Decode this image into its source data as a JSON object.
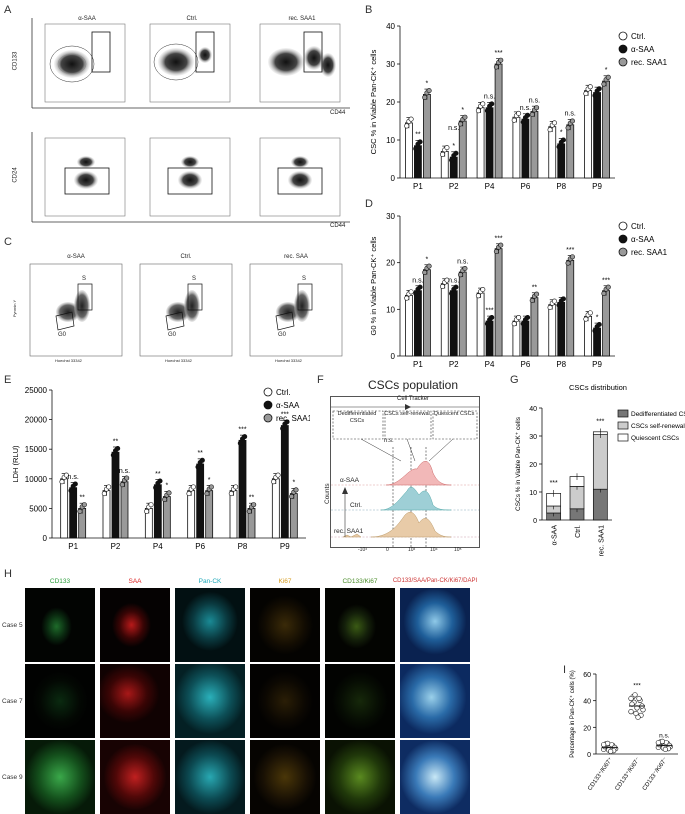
{
  "panels": {
    "A": {
      "label": "A",
      "top_titles": [
        "α-SAA",
        "Ctrl.",
        "rec. SAA1"
      ],
      "top_ylabel": "CD133",
      "top_xlabel": "CD44",
      "bottom_ylabel": "CD24",
      "bottom_xlabel": "CD44"
    },
    "C": {
      "label": "C",
      "titles": [
        "α-SAA",
        "Ctrl.",
        "rec. SAA"
      ],
      "gate_s": "S",
      "gate_g0": "G0",
      "ylabel": "Pyronin Y",
      "xlabel": "Hoechst 33342"
    },
    "F": {
      "label": "F",
      "title": "CSCs population",
      "tracker": "Cell Tracker",
      "gates": [
        "Dedifferentiated CSCs",
        "CSCs self-renewal",
        "Quiescent CSCs"
      ],
      "rows": [
        "α-SAA",
        "Ctrl.",
        "rec. SAA1"
      ],
      "ylabel": "Counts",
      "ns": "n.s.",
      "xticks": [
        "-10³",
        "0",
        "10³",
        "10⁴",
        "10⁵"
      ]
    },
    "H": {
      "label": "H",
      "columns": [
        "CD133",
        "SAA",
        "Pan-CK",
        "Ki67",
        "CD133/Ki67",
        "CD133/SAA/Pan-CK/Ki67/DAPI"
      ],
      "cases": [
        "Case 5",
        "Case 7",
        "Case 9"
      ]
    }
  },
  "chart_data": [
    {
      "id": "B",
      "label": "B",
      "type": "bar",
      "categories": [
        "P1",
        "P2",
        "P4",
        "P6",
        "P8",
        "P9"
      ],
      "series": [
        {
          "name": "Ctrl.",
          "color": "#ffffff",
          "values": [
            14.5,
            7,
            18.5,
            16,
            13.5,
            23
          ]
        },
        {
          "name": "α-SAA",
          "color": "#111111",
          "values": [
            8.5,
            5.5,
            18.5,
            15.5,
            9,
            22.5
          ]
        },
        {
          "name": "rec. SAA1",
          "color": "#999999",
          "values": [
            22,
            15,
            30,
            17.5,
            14,
            25.5
          ]
        }
      ],
      "ylabel": "CSC % in Viable Pan-CK⁺ cells",
      "ylim": [
        0,
        40
      ],
      "yticks": [
        0,
        10,
        20,
        30,
        40
      ],
      "annotations": [
        [
          "**",
          "*"
        ],
        [
          "*",
          "*"
        ],
        [
          "n.s.",
          "***"
        ],
        [
          "n.s.",
          "n.s."
        ],
        [
          "*",
          "n.s."
        ],
        [
          "",
          "*"
        ]
      ],
      "extra_ns": [
        [
          "n.s.",
          1,
          2
        ]
      ]
    },
    {
      "id": "D",
      "label": "D",
      "type": "bar",
      "categories": [
        "P1",
        "P2",
        "P4",
        "P6",
        "P8",
        "P9"
      ],
      "series": [
        {
          "name": "Ctrl.",
          "color": "#ffffff",
          "values": [
            13,
            15.5,
            13.5,
            7.5,
            11,
            8.5
          ]
        },
        {
          "name": "α-SAA",
          "color": "#111111",
          "values": [
            14,
            14,
            7.5,
            7.5,
            11.5,
            6
          ]
        },
        {
          "name": "rec. SAA1",
          "color": "#999999",
          "values": [
            18.5,
            18,
            23,
            12.5,
            20.5,
            14
          ]
        }
      ],
      "ylabel": "G0 % in Viable Pan-CK⁺ cells",
      "ylim": [
        0,
        30
      ],
      "yticks": [
        0,
        10,
        20,
        30
      ],
      "annotations": [
        [
          "n.s.",
          "*"
        ],
        [
          "n.s.",
          "n.s."
        ],
        [
          "***",
          "***"
        ],
        [
          "",
          "**"
        ],
        [
          "",
          "***"
        ],
        [
          "*",
          "***"
        ]
      ]
    },
    {
      "id": "E",
      "label": "E",
      "type": "bar",
      "categories": [
        "P1",
        "P2",
        "P4",
        "P6",
        "P8",
        "P9"
      ],
      "series": [
        {
          "name": "Ctrl.",
          "color": "#ffffff",
          "values": [
            10000,
            8000,
            5000,
            8000,
            8000,
            10000
          ]
        },
        {
          "name": "α-SAA",
          "color": "#111111",
          "values": [
            8500,
            14500,
            9000,
            12500,
            16500,
            19000
          ]
        },
        {
          "name": "rec. SAA1",
          "color": "#999999",
          "values": [
            5000,
            9500,
            7000,
            8000,
            5000,
            7500
          ]
        }
      ],
      "ylabel": "LDH (RLU)",
      "ylim": [
        0,
        25000
      ],
      "yticks": [
        0,
        5000,
        10000,
        15000,
        20000,
        25000
      ],
      "annotations": [
        [
          "n.s.",
          "**"
        ],
        [
          "**",
          "n.s."
        ],
        [
          "**",
          "*"
        ],
        [
          "**",
          "*"
        ],
        [
          "***",
          "**"
        ],
        [
          "***",
          "*"
        ]
      ]
    },
    {
      "id": "G",
      "label": "G",
      "type": "bar",
      "title": "CSCs distribution",
      "categories": [
        "α-SAA",
        "Ctrl.",
        "rec. SAA1"
      ],
      "series": [
        {
          "name": "Dedifferentiated CSCs",
          "color": "#777777",
          "values": [
            2.5,
            4,
            11
          ]
        },
        {
          "name": "CSCs self-renewal",
          "color": "#cccccc",
          "values": [
            2.5,
            8,
            19.5
          ]
        },
        {
          "name": "Quiescent CSCs",
          "color": "#ffffff",
          "values": [
            4.5,
            3.5,
            1
          ]
        }
      ],
      "ylabel": "CSCs % in Viable Pan-CK⁺ cells",
      "ylim": [
        0,
        40
      ],
      "yticks": [
        0,
        10,
        20,
        30,
        40
      ],
      "annotations": [
        "***",
        "",
        "***"
      ]
    },
    {
      "id": "I",
      "label": "I",
      "type": "scatter",
      "categories": [
        "CD133⁺/Ki67⁺",
        "CD133⁺/Ki67⁻",
        "CD133⁻/Ki67⁻"
      ],
      "values": [
        5,
        36,
        6.5
      ],
      "ylabel": "Percentage in Pan-CK⁺ cells (%)",
      "ylim": [
        0,
        60
      ],
      "yticks": [
        0,
        20,
        40,
        60
      ],
      "annotations": [
        "",
        "***",
        "n.s."
      ]
    }
  ]
}
